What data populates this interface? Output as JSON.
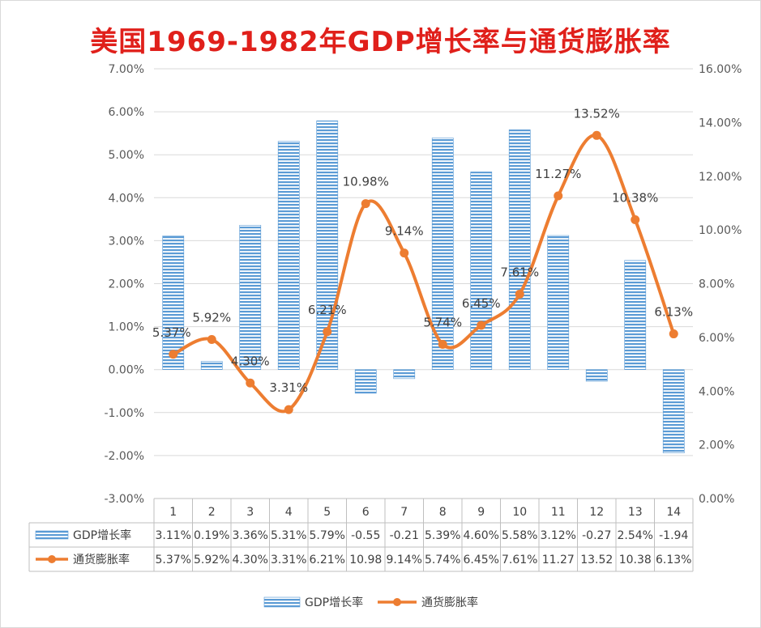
{
  "chart_data": {
    "type": "bar+line",
    "title": "美国1969-1982年GDP增长率与通货膨胀率",
    "categories": [
      "1",
      "2",
      "3",
      "4",
      "5",
      "6",
      "7",
      "8",
      "9",
      "10",
      "11",
      "12",
      "13",
      "14"
    ],
    "series": [
      {
        "name": "GDP增长率",
        "type": "bar",
        "axis": "left",
        "color": "#5b9bd5",
        "values": [
          3.11,
          0.19,
          3.36,
          5.31,
          5.79,
          -0.55,
          -0.21,
          5.39,
          4.6,
          5.58,
          3.12,
          -0.27,
          2.54,
          -1.94
        ],
        "table_labels": [
          "3.11%",
          "0.19%",
          "3.36%",
          "5.31%",
          "5.79%",
          "-0.55",
          "-0.21",
          "5.39%",
          "4.60%",
          "5.58%",
          "3.12%",
          "-0.27",
          "2.54%",
          "-1.94"
        ]
      },
      {
        "name": "通货膨胀率",
        "type": "line",
        "axis": "right",
        "color": "#ed7d31",
        "values": [
          5.37,
          5.92,
          4.3,
          3.31,
          6.21,
          10.98,
          9.14,
          5.74,
          6.45,
          7.61,
          11.27,
          13.52,
          10.38,
          6.13
        ],
        "data_labels": [
          "5.37%",
          "5.92%",
          "4.30%",
          "3.31%",
          "6.21%",
          "10.98%",
          "9.14%",
          "5.74%",
          "6.45%",
          "7.61%",
          "11.27%",
          "13.52%",
          "10.38%",
          "6.13%"
        ],
        "table_labels": [
          "5.37%",
          "5.92%",
          "4.30%",
          "3.31%",
          "6.21%",
          "10.98",
          "9.14%",
          "5.74%",
          "6.45%",
          "7.61%",
          "11.27",
          "13.52",
          "10.38",
          "6.13%"
        ]
      }
    ],
    "left_axis": {
      "min": -3,
      "max": 7,
      "ticks": [
        "7.00%",
        "6.00%",
        "5.00%",
        "4.00%",
        "3.00%",
        "2.00%",
        "1.00%",
        "0.00%",
        "-1.00%",
        "-2.00%",
        "-3.00%"
      ]
    },
    "right_axis": {
      "min": 0,
      "max": 16,
      "ticks": [
        "16.00%",
        "14.00%",
        "12.00%",
        "10.00%",
        "8.00%",
        "6.00%",
        "4.00%",
        "2.00%",
        "0.00%"
      ]
    },
    "grid": true,
    "legend": {
      "position": "bottom",
      "items": [
        "GDP增长率",
        "通货膨胀率"
      ]
    }
  }
}
